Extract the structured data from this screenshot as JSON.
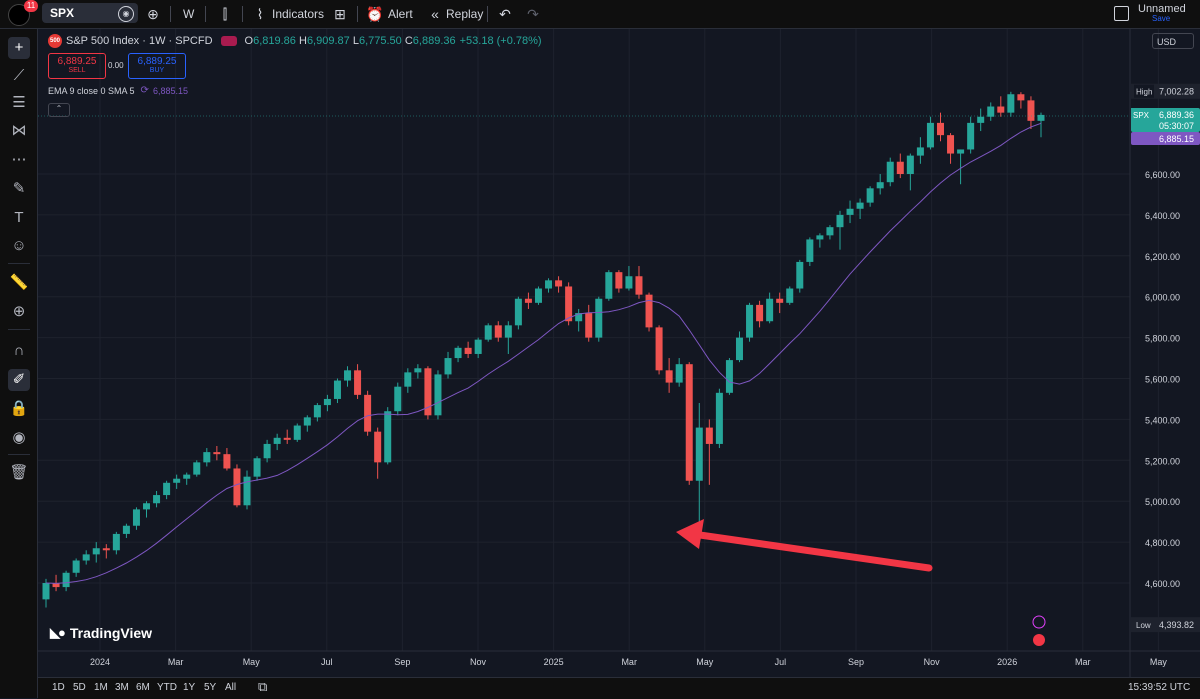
{
  "toolbar": {
    "notifications": "11",
    "symbol": "SPX",
    "interval": "W",
    "indicators_label": "Indicators",
    "alert_label": "Alert",
    "replay_label": "Replay",
    "layout_name": "Unnamed",
    "save_label": "Save"
  },
  "legend": {
    "badge": "500",
    "title": "S&P 500 Index · 1W · SPCFD",
    "open_label": "O",
    "open": "6,819.86",
    "high_label": "H",
    "high": "6,909.87",
    "low_label": "L",
    "low": "6,775.50",
    "close_label": "C",
    "close": "6,889.36",
    "change": "+53.18 (+0.78%)"
  },
  "trade": {
    "sell_price": "6,889.25",
    "sell_label": "SELL",
    "spread": "0.00",
    "buy_price": "6,889.25",
    "buy_label": "BUY"
  },
  "indicator": {
    "label": "EMA 9 close 0 SMA 5",
    "value": "6,885.15"
  },
  "currency": "USD",
  "price_axis": {
    "ticks": [
      "6,600.00",
      "6,400.00",
      "6,200.00",
      "6,000.00",
      "5,800.00",
      "5,600.00",
      "5,400.00",
      "5,200.00",
      "5,000.00",
      "4,800.00",
      "4,600.00"
    ],
    "high_label": "High",
    "high_value": "7,002.28",
    "low_label": "Low",
    "low_value": "4,393.82",
    "last_symbol": "SPX",
    "last_price": "6,889.36",
    "countdown": "05:30:07",
    "ema_value": "6,885.15"
  },
  "time_axis": [
    "2024",
    "Mar",
    "May",
    "Jul",
    "Sep",
    "Nov",
    "2025",
    "Mar",
    "May",
    "Jul",
    "Sep",
    "Nov",
    "2026",
    "Mar",
    "May"
  ],
  "ranges": [
    "1D",
    "5D",
    "1M",
    "3M",
    "6M",
    "YTD",
    "1Y",
    "5Y",
    "All"
  ],
  "clock": "15:39:52 UTC",
  "brand": "TradingView",
  "colors": {
    "up": "#26a69a",
    "down": "#ef5350",
    "ema": "#7e57c2",
    "arrow": "#f23645",
    "background": "#131722"
  },
  "chart_data": {
    "type": "candlestick",
    "interval": "1W",
    "ylim": [
      4393.82,
      7002.28
    ],
    "ohlc_weekly_approx": [
      [
        4520,
        4620,
        4480,
        4600
      ],
      [
        4600,
        4640,
        4560,
        4580
      ],
      [
        4580,
        4660,
        4560,
        4650
      ],
      [
        4650,
        4720,
        4630,
        4710
      ],
      [
        4710,
        4760,
        4690,
        4740
      ],
      [
        4740,
        4800,
        4700,
        4770
      ],
      [
        4770,
        4790,
        4720,
        4760
      ],
      [
        4760,
        4850,
        4740,
        4840
      ],
      [
        4840,
        4890,
        4820,
        4880
      ],
      [
        4880,
        4970,
        4860,
        4960
      ],
      [
        4960,
        5000,
        4920,
        4990
      ],
      [
        4990,
        5050,
        4970,
        5030
      ],
      [
        5030,
        5100,
        5010,
        5090
      ],
      [
        5090,
        5130,
        5060,
        5110
      ],
      [
        5110,
        5140,
        5080,
        5130
      ],
      [
        5130,
        5200,
        5120,
        5190
      ],
      [
        5190,
        5260,
        5170,
        5240
      ],
      [
        5240,
        5270,
        5200,
        5230
      ],
      [
        5230,
        5260,
        5150,
        5160
      ],
      [
        5160,
        5180,
        4970,
        4980
      ],
      [
        4980,
        5150,
        4960,
        5120
      ],
      [
        5120,
        5220,
        5100,
        5210
      ],
      [
        5210,
        5300,
        5190,
        5280
      ],
      [
        5280,
        5330,
        5250,
        5310
      ],
      [
        5310,
        5350,
        5280,
        5300
      ],
      [
        5300,
        5380,
        5290,
        5370
      ],
      [
        5370,
        5420,
        5340,
        5410
      ],
      [
        5410,
        5480,
        5390,
        5470
      ],
      [
        5470,
        5520,
        5440,
        5500
      ],
      [
        5500,
        5600,
        5480,
        5590
      ],
      [
        5590,
        5660,
        5560,
        5640
      ],
      [
        5640,
        5670,
        5500,
        5520
      ],
      [
        5520,
        5540,
        5320,
        5340
      ],
      [
        5340,
        5360,
        5110,
        5190
      ],
      [
        5190,
        5460,
        5180,
        5440
      ],
      [
        5440,
        5580,
        5420,
        5560
      ],
      [
        5560,
        5650,
        5530,
        5630
      ],
      [
        5630,
        5670,
        5600,
        5650
      ],
      [
        5650,
        5660,
        5400,
        5420
      ],
      [
        5420,
        5640,
        5400,
        5620
      ],
      [
        5620,
        5730,
        5600,
        5700
      ],
      [
        5700,
        5760,
        5680,
        5750
      ],
      [
        5750,
        5780,
        5700,
        5720
      ],
      [
        5720,
        5800,
        5700,
        5790
      ],
      [
        5790,
        5870,
        5780,
        5860
      ],
      [
        5860,
        5880,
        5780,
        5800
      ],
      [
        5800,
        5880,
        5720,
        5860
      ],
      [
        5860,
        6000,
        5840,
        5990
      ],
      [
        5990,
        6020,
        5940,
        5970
      ],
      [
        5970,
        6050,
        5960,
        6040
      ],
      [
        6040,
        6090,
        6020,
        6080
      ],
      [
        6080,
        6100,
        6020,
        6050
      ],
      [
        6050,
        6070,
        5860,
        5880
      ],
      [
        5880,
        5940,
        5830,
        5920
      ],
      [
        5920,
        5960,
        5780,
        5800
      ],
      [
        5800,
        6000,
        5780,
        5990
      ],
      [
        5990,
        6130,
        5980,
        6120
      ],
      [
        6120,
        6130,
        6020,
        6040
      ],
      [
        6040,
        6150,
        6030,
        6100
      ],
      [
        6100,
        6150,
        5990,
        6010
      ],
      [
        6010,
        6020,
        5830,
        5850
      ],
      [
        5850,
        5860,
        5620,
        5640
      ],
      [
        5640,
        5700,
        5530,
        5580
      ],
      [
        5580,
        5700,
        5560,
        5670
      ],
      [
        5670,
        5680,
        5080,
        5100
      ],
      [
        5100,
        5480,
        4840,
        5360
      ],
      [
        5360,
        5400,
        5080,
        5280
      ],
      [
        5280,
        5550,
        5260,
        5530
      ],
      [
        5530,
        5700,
        5520,
        5690
      ],
      [
        5690,
        5830,
        5680,
        5800
      ],
      [
        5800,
        5970,
        5780,
        5960
      ],
      [
        5960,
        5980,
        5850,
        5880
      ],
      [
        5880,
        6020,
        5870,
        5990
      ],
      [
        5990,
        6020,
        5920,
        5970
      ],
      [
        5970,
        6050,
        5960,
        6040
      ],
      [
        6040,
        6180,
        6020,
        6170
      ],
      [
        6170,
        6290,
        6150,
        6280
      ],
      [
        6280,
        6310,
        6240,
        6300
      ],
      [
        6300,
        6350,
        6280,
        6340
      ],
      [
        6340,
        6420,
        6230,
        6400
      ],
      [
        6400,
        6470,
        6360,
        6430
      ],
      [
        6430,
        6480,
        6380,
        6460
      ],
      [
        6460,
        6540,
        6440,
        6530
      ],
      [
        6530,
        6600,
        6500,
        6560
      ],
      [
        6560,
        6680,
        6540,
        6660
      ],
      [
        6660,
        6700,
        6580,
        6600
      ],
      [
        6600,
        6700,
        6520,
        6690
      ],
      [
        6690,
        6780,
        6650,
        6730
      ],
      [
        6730,
        6880,
        6720,
        6850
      ],
      [
        6850,
        6900,
        6760,
        6790
      ],
      [
        6790,
        6800,
        6650,
        6700
      ],
      [
        6700,
        6720,
        6550,
        6720
      ],
      [
        6720,
        6880,
        6700,
        6850
      ],
      [
        6850,
        6920,
        6810,
        6880
      ],
      [
        6880,
        6950,
        6860,
        6930
      ],
      [
        6930,
        6980,
        6880,
        6900
      ],
      [
        6900,
        7002,
        6880,
        6990
      ],
      [
        6990,
        7000,
        6920,
        6960
      ],
      [
        6960,
        6980,
        6820,
        6860
      ],
      [
        6860,
        6900,
        6780,
        6889
      ]
    ],
    "ema_annotation": "EMA 9 close 0 SMA 5",
    "annotation": "arrow pointing to April 2025 low"
  }
}
